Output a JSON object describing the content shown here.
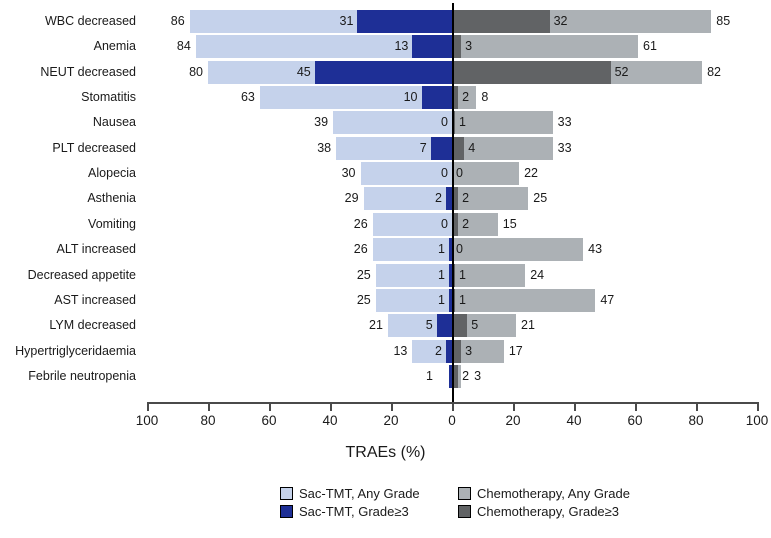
{
  "chart_data": {
    "type": "bar",
    "variant": "diverging-horizontal-tornado",
    "title": "",
    "xlabel": "TRAEs (%)",
    "x_ticks": [
      "100",
      "80",
      "60",
      "40",
      "20",
      "0",
      "20",
      "40",
      "60",
      "80",
      "100"
    ],
    "xlim_left": 100,
    "xlim_right": 100,
    "grid": false,
    "legend_position": "bottom",
    "legend": [
      {
        "name": "sac-tmt-any-grade",
        "label": "Sac-TMT, Any Grade",
        "color": "#c5d2eb"
      },
      {
        "name": "sac-tmt-grade3",
        "label": "Sac-TMT, Grade≥3",
        "color": "#1e2f96"
      },
      {
        "name": "chemotherapy-any-grade",
        "label": "Chemotherapy, Any Grade",
        "color": "#acb1b5"
      },
      {
        "name": "chemotherapy-grade3",
        "label": "Chemotherapy, Grade≥3",
        "color": "#616365"
      }
    ],
    "series_note": "left side = Sac-TMT (values plotted as negative), right side = Chemotherapy; Grade≥3 bar overlays Any Grade bar from zero",
    "rows": [
      {
        "label": "WBC decreased",
        "sac_any": 86,
        "sac_g3": 31,
        "chemo_g3": 32,
        "chemo_any": 85,
        "labels": {
          "sac_any": "86",
          "sac_g3": "31",
          "chemo_g3": "32",
          "chemo_any": "85"
        }
      },
      {
        "label": "Anemia",
        "sac_any": 84,
        "sac_g3": 13,
        "chemo_g3": 3,
        "chemo_any": 61,
        "labels": {
          "sac_any": "84",
          "sac_g3": "13",
          "chemo_g3": "3",
          "chemo_any": "61"
        }
      },
      {
        "label": "NEUT decreased",
        "sac_any": 80,
        "sac_g3": 45,
        "chemo_g3": 52,
        "chemo_any": 82,
        "labels": {
          "sac_any": "80",
          "sac_g3": "45",
          "chemo_g3": "52",
          "chemo_any": "82"
        }
      },
      {
        "label": "Stomatitis",
        "sac_any": 63,
        "sac_g3": 10,
        "chemo_g3": 2,
        "chemo_any": 8,
        "labels": {
          "sac_any": "63",
          "sac_g3": "10",
          "chemo_g3": "2",
          "chemo_any": "8"
        }
      },
      {
        "label": "Nausea",
        "sac_any": 39,
        "sac_g3": 0,
        "chemo_g3": 1,
        "chemo_any": 33,
        "labels": {
          "sac_any": "39",
          "sac_g3": "0",
          "chemo_g3": "1",
          "chemo_any": "33"
        }
      },
      {
        "label": "PLT decreased",
        "sac_any": 38,
        "sac_g3": 7,
        "chemo_g3": 4,
        "chemo_any": 33,
        "labels": {
          "sac_any": "38",
          "sac_g3": "7",
          "chemo_g3": "4",
          "chemo_any": "33"
        }
      },
      {
        "label": "Alopecia",
        "sac_any": 30,
        "sac_g3": 0,
        "chemo_g3": 0,
        "chemo_any": 22,
        "labels": {
          "sac_any": "30",
          "sac_g3": "0",
          "chemo_g3": "0",
          "chemo_any": "22"
        }
      },
      {
        "label": "Asthenia",
        "sac_any": 29,
        "sac_g3": 2,
        "chemo_g3": 2,
        "chemo_any": 25,
        "labels": {
          "sac_any": "29",
          "sac_g3": "2",
          "chemo_g3": "2",
          "chemo_any": "25"
        }
      },
      {
        "label": "Vomiting",
        "sac_any": 26,
        "sac_g3": 0,
        "chemo_g3": 2,
        "chemo_any": 15,
        "labels": {
          "sac_any": "26",
          "sac_g3": "0",
          "chemo_g3": "2",
          "chemo_any": "15"
        }
      },
      {
        "label": "ALT increased",
        "sac_any": 26,
        "sac_g3": 1,
        "chemo_g3": 0,
        "chemo_any": 43,
        "labels": {
          "sac_any": "26",
          "sac_g3": "1",
          "chemo_g3": "0",
          "chemo_any": "43"
        }
      },
      {
        "label": "Decreased appetite",
        "sac_any": 25,
        "sac_g3": 1,
        "chemo_g3": 1,
        "chemo_any": 24,
        "labels": {
          "sac_any": "25",
          "sac_g3": "1",
          "chemo_g3": "1",
          "chemo_any": "24"
        }
      },
      {
        "label": "AST increased",
        "sac_any": 25,
        "sac_g3": 1,
        "chemo_g3": 1,
        "chemo_any": 47,
        "labels": {
          "sac_any": "25",
          "sac_g3": "1",
          "chemo_g3": "1",
          "chemo_any": "47"
        }
      },
      {
        "label": "LYM decreased",
        "sac_any": 21,
        "sac_g3": 5,
        "chemo_g3": 5,
        "chemo_any": 21,
        "labels": {
          "sac_any": "21",
          "sac_g3": "5",
          "chemo_g3": "5",
          "chemo_any": "21"
        }
      },
      {
        "label": "Hypertriglyceridaemia",
        "sac_any": 13,
        "sac_g3": 2,
        "chemo_g3": 3,
        "chemo_any": 17,
        "labels": {
          "sac_any": "13",
          "sac_g3": "2",
          "chemo_g3": "3",
          "chemo_any": "17"
        }
      },
      {
        "label": "Febrile neutropenia",
        "sac_any": 1,
        "sac_g3": 1,
        "chemo_g3": 2,
        "chemo_any": 3,
        "labels": {
          "sac_any": "1",
          "sac_g3": "",
          "chemo_g3": "2",
          "chemo_any": "3"
        }
      }
    ]
  },
  "colors": {
    "sac_any": "#c5d2eb",
    "sac_g3": "#1e2f96",
    "chemo_any": "#acb1b5",
    "chemo_g3": "#616365",
    "axis": "#4a4a4a",
    "zero_line": "#000000",
    "text": "#1a1a1a",
    "background": "#ffffff"
  }
}
